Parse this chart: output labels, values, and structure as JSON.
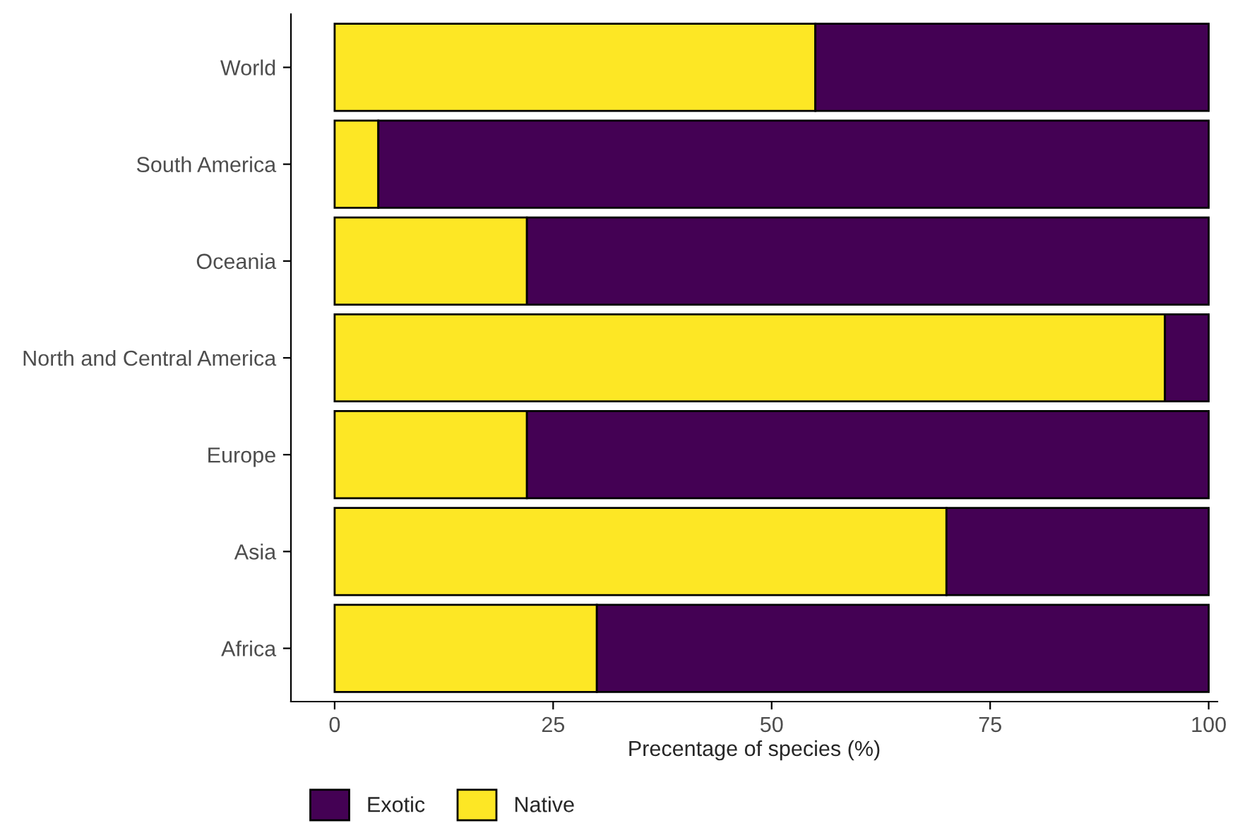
{
  "chart_data": {
    "type": "bar",
    "orientation": "horizontal",
    "stacked": true,
    "xlabel": "Precentage of species (%)",
    "categories": [
      "World",
      "South America",
      "Oceania",
      "North and Central America",
      "Europe",
      "Asia",
      "Africa"
    ],
    "series": [
      {
        "name": "Native",
        "color": "#fde725",
        "values": [
          55,
          5,
          22,
          95,
          22,
          70,
          30
        ]
      },
      {
        "name": "Exotic",
        "color": "#440154",
        "values": [
          45,
          95,
          78,
          5,
          78,
          30,
          70
        ]
      }
    ],
    "xlim": [
      -5,
      101
    ],
    "xticks": [
      0,
      25,
      50,
      75,
      100
    ],
    "grid": false,
    "legend": "bottom left"
  }
}
